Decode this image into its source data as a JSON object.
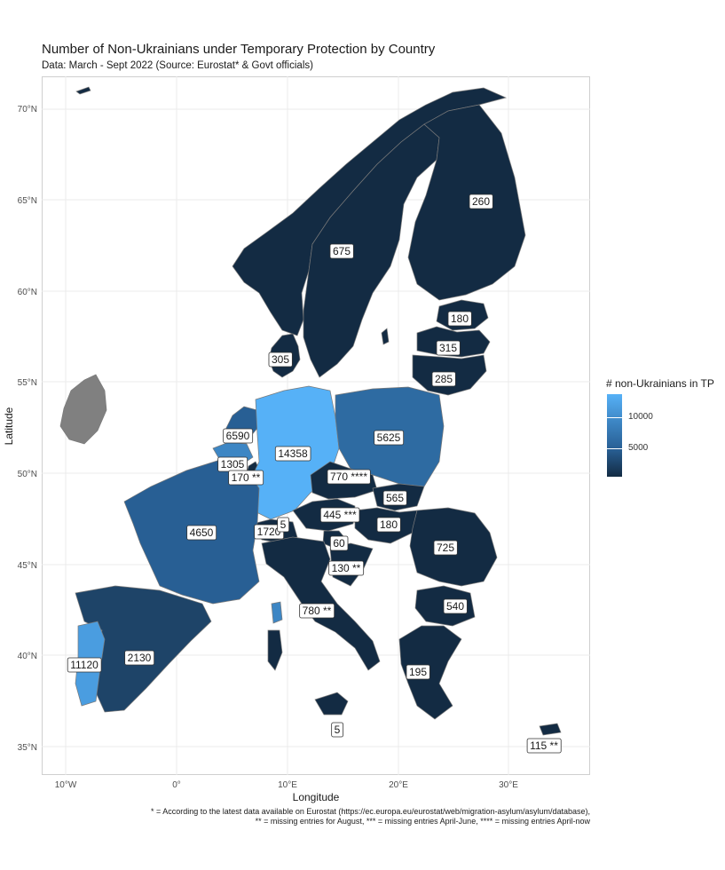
{
  "title": "Number of Non-Ukrainians under Temporary Protection by Country",
  "subtitle": "Data: March - Sept 2022 (Source: Eurostat* & Govt officials)",
  "axes": {
    "xlabel": "Longitude",
    "ylabel": "Latitude",
    "x_ticks": [
      "10°W",
      "0°",
      "10°E",
      "20°E",
      "30°E"
    ],
    "y_ticks": [
      "70°N",
      "65°N",
      "60°N",
      "55°N",
      "50°N",
      "45°N",
      "40°N",
      "35°N"
    ]
  },
  "legend": {
    "title": "# non-Ukrainians in TP",
    "ticks": [
      "10000",
      "5000"
    ],
    "low_color": "#132b43",
    "high_color": "#56b1f7"
  },
  "colors": {
    "no_data": "#808080",
    "border": "#7a7a7a"
  },
  "footnotes": [
    "* = According to the latest data available on Eurostat (https://ec.europa.eu/eurostat/web/migration-asylum/asylum/database),",
    "** = missing entries for August, *** = missing entries April-June, **** = missing entries April-now"
  ],
  "chart_data": {
    "type": "choropleth",
    "value_label": "# non-Ukrainians in TP",
    "labels": [
      {
        "text": "260",
        "value": 260
      },
      {
        "text": "675",
        "value": 675
      },
      {
        "text": "180",
        "value": 180
      },
      {
        "text": "315",
        "value": 315
      },
      {
        "text": "285",
        "value": 285
      },
      {
        "text": "305",
        "value": 305
      },
      {
        "text": "6590",
        "value": 6590
      },
      {
        "text": "14358",
        "value": 14358
      },
      {
        "text": "5625",
        "value": 5625
      },
      {
        "text": "1305",
        "value": 1305
      },
      {
        "text": "170 **",
        "value": 170
      },
      {
        "text": "770 ****",
        "value": 770
      },
      {
        "text": "565",
        "value": 565
      },
      {
        "text": "445 ***",
        "value": 445
      },
      {
        "text": "4650",
        "value": 4650
      },
      {
        "text": "1720",
        "value": 1720
      },
      {
        "text": "5",
        "value": 5
      },
      {
        "text": "180",
        "value": 180
      },
      {
        "text": "60",
        "value": 60
      },
      {
        "text": "725",
        "value": 725
      },
      {
        "text": "130 **",
        "value": 130
      },
      {
        "text": "540",
        "value": 540
      },
      {
        "text": "780 **",
        "value": 780
      },
      {
        "text": "2130",
        "value": 2130
      },
      {
        "text": "11120",
        "value": 11120
      },
      {
        "text": "195",
        "value": 195
      },
      {
        "text": "5",
        "value": 5
      },
      {
        "text": "115 **",
        "value": 115
      }
    ]
  }
}
